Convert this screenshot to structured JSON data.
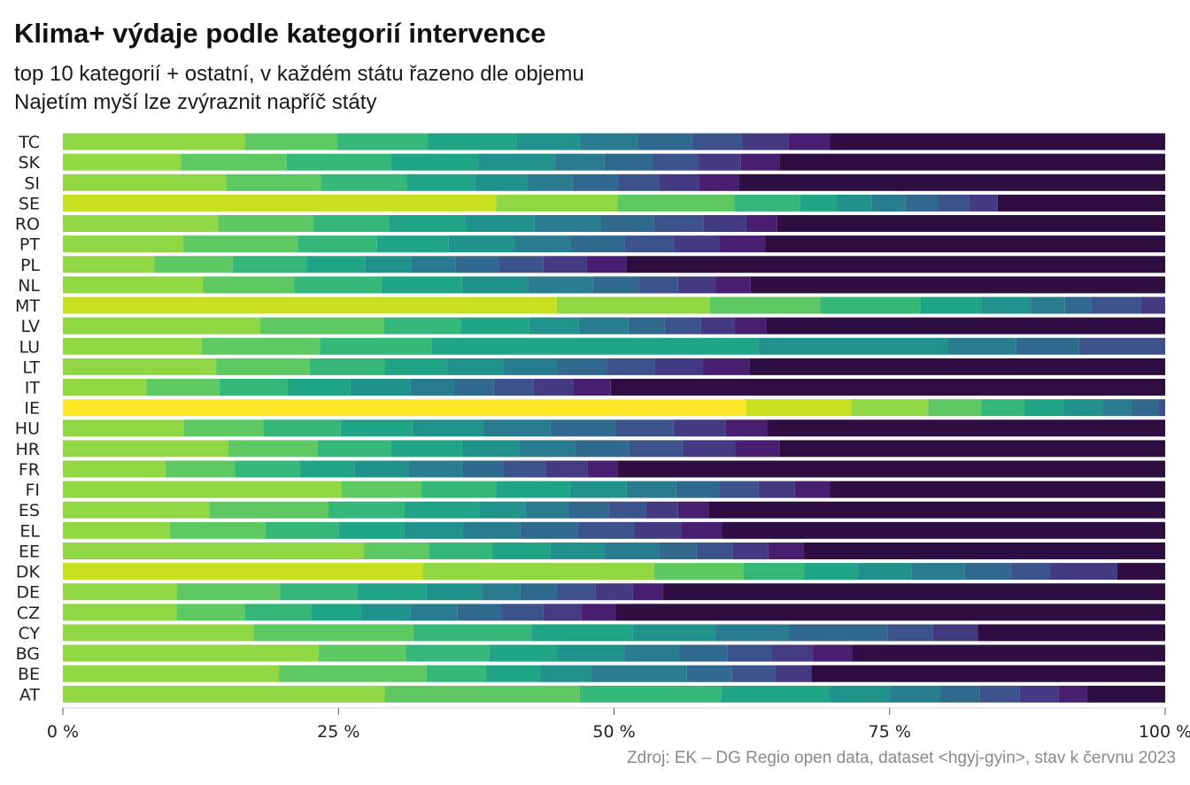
{
  "chart_data": {
    "type": "bar",
    "orientation": "horizontal",
    "stacked": true,
    "normalized": true,
    "title": "Klima+ výdaje podle kategorií intervence",
    "subtitle": "top 10 kategorií + ostatní, v každém státu řazeno dle objemu",
    "subtitle2": "Najetím myší lze zvýraznit napříč státy",
    "source": "Zdroj: EK – DG Regio open data, dataset <hgyj-gyin>, stav k červnu 2023",
    "xlim": [
      0,
      100
    ],
    "x_ticks": [
      "0 %",
      "25 %",
      "50 %",
      "75 %",
      "100 %"
    ],
    "grid": false,
    "categories": [
      "TC",
      "SK",
      "SI",
      "SE",
      "RO",
      "PT",
      "PL",
      "NL",
      "MT",
      "LV",
      "LU",
      "LT",
      "IT",
      "IE",
      "HU",
      "HR",
      "FR",
      "FI",
      "ES",
      "EL",
      "EE",
      "DK",
      "DE",
      "CZ",
      "CY",
      "BG",
      "BE",
      "AT"
    ],
    "rows": [
      {
        "country": "TC",
        "values": [
          16.5,
          8.4,
          8.2,
          8.1,
          5.7,
          5.2,
          5.0,
          4.5,
          4.2,
          3.8,
          30.4
        ]
      },
      {
        "country": "SK",
        "values": [
          10.7,
          9.6,
          9.5,
          7.8,
          7.0,
          4.5,
          4.4,
          4.1,
          3.9,
          3.5,
          35.0
        ]
      },
      {
        "country": "SI",
        "values": [
          14.8,
          8.6,
          7.8,
          6.2,
          4.7,
          4.1,
          4.1,
          3.8,
          3.6,
          3.6,
          38.7
        ]
      },
      {
        "country": "SE",
        "values": [
          39.3,
          11.0,
          10.6,
          6.0,
          3.3,
          3.2,
          3.0,
          3.0,
          2.8,
          2.6,
          15.2
        ]
      },
      {
        "country": "RO",
        "values": [
          14.1,
          8.6,
          6.9,
          6.9,
          6.3,
          6.0,
          4.8,
          4.5,
          3.9,
          2.8,
          35.2
        ]
      },
      {
        "country": "PT",
        "values": [
          10.9,
          10.4,
          7.2,
          6.5,
          6.0,
          5.1,
          4.9,
          4.5,
          4.1,
          4.1,
          36.3
        ]
      },
      {
        "country": "PL",
        "values": [
          8.3,
          7.1,
          6.7,
          5.3,
          4.2,
          4.0,
          4.0,
          4.0,
          3.9,
          3.6,
          48.9
        ]
      },
      {
        "country": "NL",
        "values": [
          12.7,
          8.3,
          7.9,
          7.3,
          6.0,
          5.9,
          4.2,
          3.5,
          3.4,
          3.2,
          37.6
        ]
      },
      {
        "country": "MT",
        "values": [
          44.8,
          13.9,
          10.0,
          9.1,
          5.5,
          4.5,
          3.1,
          2.4,
          4.5,
          2.2,
          0.0
        ]
      },
      {
        "country": "LV",
        "values": [
          17.9,
          11.2,
          7.0,
          6.2,
          4.5,
          4.5,
          3.3,
          3.3,
          3.0,
          2.9,
          36.2
        ]
      },
      {
        "country": "LU",
        "values": [
          12.6,
          10.7,
          10.1,
          29.6,
          17.2,
          6.2,
          5.7,
          7.8,
          0.0,
          0.0,
          0.0
        ]
      },
      {
        "country": "LT",
        "values": [
          13.9,
          8.5,
          6.8,
          5.6,
          5.2,
          4.9,
          4.5,
          4.3,
          4.3,
          4.3,
          37.7
        ]
      },
      {
        "country": "IT",
        "values": [
          7.6,
          6.6,
          6.2,
          5.7,
          5.4,
          4.0,
          3.6,
          3.6,
          3.6,
          3.4,
          50.3
        ]
      },
      {
        "country": "IE",
        "values": [
          62.0,
          9.5,
          7.0,
          4.8,
          3.9,
          3.6,
          3.5,
          2.6,
          2.5,
          0.6,
          0.0
        ]
      },
      {
        "country": "HU",
        "values": [
          11.0,
          7.2,
          7.0,
          6.5,
          6.4,
          6.1,
          6.0,
          5.2,
          4.7,
          3.8,
          36.1
        ]
      },
      {
        "country": "HR",
        "values": [
          15.0,
          8.1,
          6.7,
          6.4,
          5.2,
          5.1,
          4.9,
          4.8,
          4.8,
          4.0,
          35.0
        ]
      },
      {
        "country": "FR",
        "values": [
          9.3,
          6.3,
          5.9,
          5.0,
          4.9,
          4.8,
          3.8,
          3.8,
          3.8,
          2.7,
          49.7
        ]
      },
      {
        "country": "FI",
        "values": [
          25.3,
          7.2,
          6.8,
          6.7,
          5.1,
          4.5,
          4.0,
          3.5,
          3.3,
          3.2,
          30.4
        ]
      },
      {
        "country": "ES",
        "values": [
          13.3,
          10.8,
          6.9,
          6.8,
          4.2,
          3.9,
          3.6,
          3.4,
          2.9,
          2.8,
          41.4
        ]
      },
      {
        "country": "EL",
        "values": [
          9.7,
          8.7,
          6.6,
          6.0,
          5.3,
          5.2,
          5.2,
          5.1,
          4.3,
          3.7,
          40.2
        ]
      },
      {
        "country": "EE",
        "values": [
          27.3,
          5.9,
          5.7,
          5.3,
          5.0,
          4.9,
          3.4,
          3.3,
          3.2,
          3.2,
          32.8
        ]
      },
      {
        "country": "DK",
        "values": [
          32.3,
          20.8,
          8.0,
          5.5,
          4.8,
          4.8,
          4.8,
          4.1,
          3.6,
          6.0,
          4.3
        ]
      },
      {
        "country": "DE",
        "values": [
          10.3,
          9.4,
          7.0,
          6.3,
          5.0,
          3.5,
          3.4,
          3.4,
          3.4,
          2.7,
          45.6
        ]
      },
      {
        "country": "CZ",
        "values": [
          10.3,
          6.2,
          6.0,
          4.5,
          4.5,
          4.3,
          4.0,
          3.8,
          3.4,
          3.2,
          49.8
        ]
      },
      {
        "country": "CY",
        "values": [
          17.3,
          14.5,
          10.7,
          9.2,
          7.5,
          6.7,
          8.9,
          4.1,
          4.1,
          0.0,
          17.0
        ]
      },
      {
        "country": "BG",
        "values": [
          23.2,
          7.9,
          7.6,
          6.2,
          6.1,
          4.9,
          4.4,
          4.0,
          3.7,
          3.6,
          28.4
        ]
      },
      {
        "country": "BE",
        "values": [
          19.6,
          13.4,
          5.4,
          4.9,
          4.6,
          8.7,
          4.1,
          3.9,
          3.3,
          0.0,
          32.1
        ]
      },
      {
        "country": "AT",
        "values": [
          29.2,
          17.7,
          12.8,
          9.9,
          5.5,
          4.5,
          3.6,
          3.6,
          3.5,
          2.6,
          7.1
        ]
      }
    ],
    "colors": [
      "#fde725",
      "#c8e020",
      "#90d743",
      "#5ec962",
      "#35b779",
      "#20a486",
      "#21918c",
      "#287c8e",
      "#31688e",
      "#3b528b",
      "#443983",
      "#481f70",
      "#440154"
    ],
    "other_color": "#2d0d42"
  }
}
